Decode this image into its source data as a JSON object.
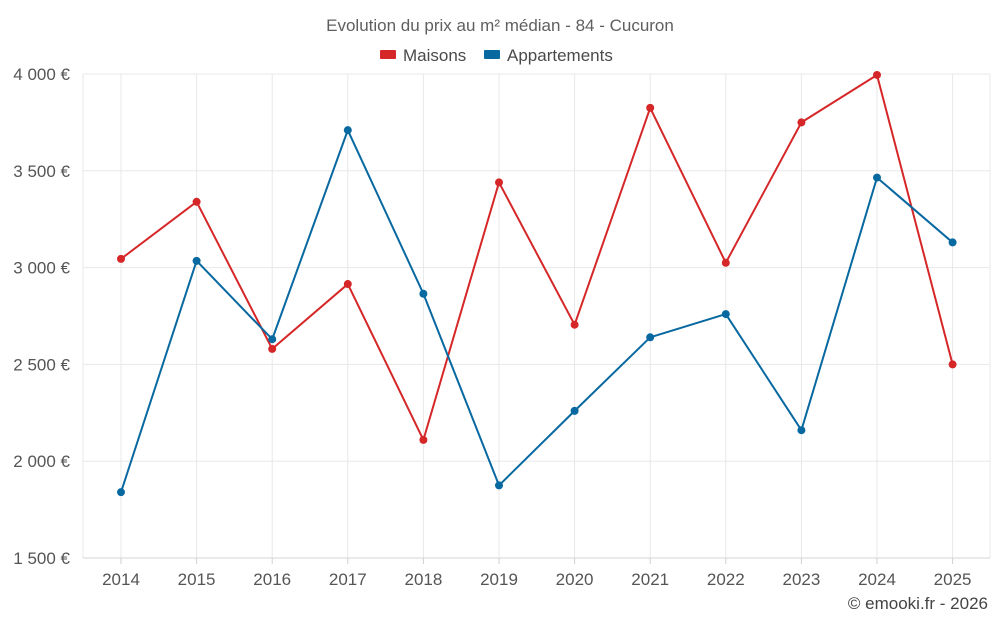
{
  "chart_data": {
    "type": "line",
    "title": "Evolution du prix au m² médian - 84 - Cucuron",
    "categories": [
      "2014",
      "2015",
      "2016",
      "2017",
      "2018",
      "2019",
      "2020",
      "2021",
      "2022",
      "2023",
      "2024",
      "2025"
    ],
    "series": [
      {
        "name": "Maisons",
        "color": "#d62728",
        "values": [
          3045,
          3340,
          2580,
          2915,
          2110,
          3440,
          2705,
          3825,
          3025,
          3750,
          3995,
          2500
        ]
      },
      {
        "name": "Appartements",
        "color": "#0868a0",
        "values": [
          1840,
          3035,
          2630,
          3710,
          2865,
          1875,
          2260,
          2640,
          2760,
          2160,
          3465,
          3130
        ]
      }
    ],
    "yticks": [
      "1 500 €",
      "2 000 €",
      "2 500 €",
      "3 000 €",
      "3 500 €",
      "4 000 €"
    ],
    "ytick_values": [
      1500,
      2000,
      2500,
      3000,
      3500,
      4000
    ],
    "ylim": [
      1500,
      4000
    ],
    "xlabel": "",
    "ylabel": "",
    "grid": true,
    "legend_position": "top-center"
  },
  "credit": "© emooki.fr - 2026"
}
